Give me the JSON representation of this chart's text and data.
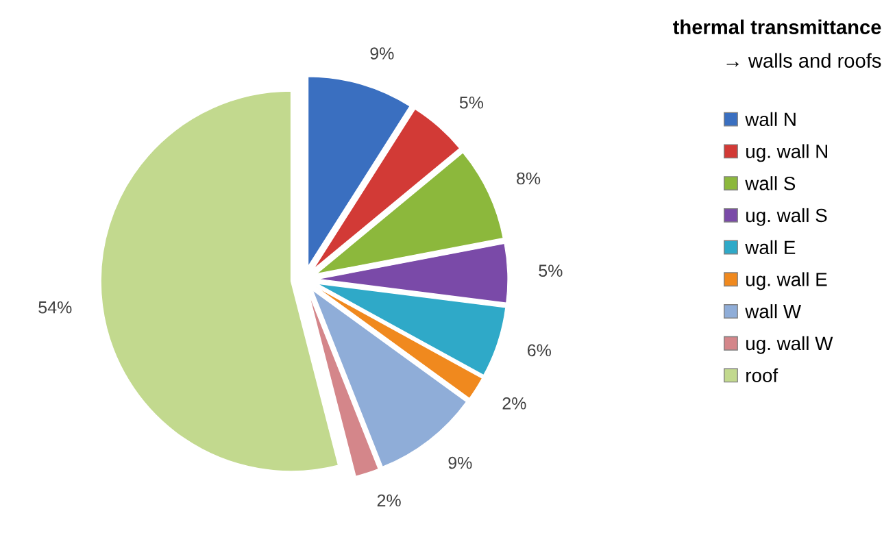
{
  "chart_data": {
    "type": "pie",
    "title": "thermal transmittance",
    "subtitle": "→ walls and roofs",
    "categories": [
      "wall N",
      "ug. wall N",
      "wall S",
      "ug. wall S",
      "wall E",
      "ug. wall E",
      "wall W",
      "ug. wall W",
      "roof"
    ],
    "values": [
      9,
      5,
      8,
      5,
      6,
      2,
      9,
      2,
      54
    ],
    "colors": [
      "#3a6fc0",
      "#d23a36",
      "#8cb83c",
      "#7a4aa8",
      "#2fa9c8",
      "#f0891e",
      "#8fadd8",
      "#d4868a",
      "#c2d98e"
    ],
    "value_labels": [
      "9%",
      "5%",
      "8%",
      "5%",
      "6%",
      "2%",
      "9%",
      "2%",
      "54%"
    ],
    "legend": "right"
  }
}
